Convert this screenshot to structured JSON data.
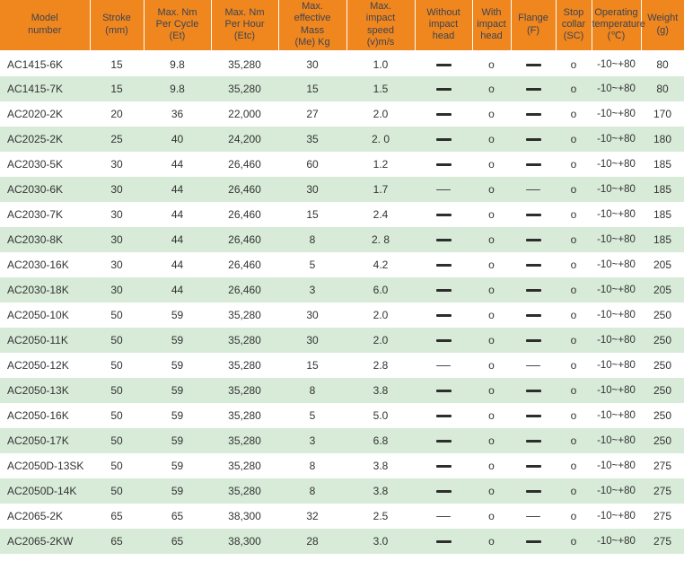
{
  "colors": {
    "header_bg": "#f0861e",
    "header_text": "#3c4454",
    "row_alt_bg": "#d7ebd8",
    "body_text": "#333333"
  },
  "table": {
    "columns": [
      {
        "key": "model",
        "label": "Model\nnumber"
      },
      {
        "key": "stroke",
        "label": "Stroke\n(mm)"
      },
      {
        "key": "per_cycle",
        "label": "Max. Nm\nPer Cycle\n(Et)"
      },
      {
        "key": "per_hour",
        "label": "Max. Nm\nPer Hour\n(Etc)"
      },
      {
        "key": "mass",
        "label": "Max.\neffective\nMass\n(Me) Kg"
      },
      {
        "key": "speed",
        "label": "Max.\nimpact\nspeed\n(v)m/s"
      },
      {
        "key": "without_head",
        "label": "Without\nimpact\nhead"
      },
      {
        "key": "with_head",
        "label": "With\nimpact\nhead"
      },
      {
        "key": "flange",
        "label": "Flange\n(F)"
      },
      {
        "key": "stop_collar",
        "label": "Stop\ncollar\n(SC)"
      },
      {
        "key": "temp",
        "label": "Operating\ntemperature\n(℃)"
      },
      {
        "key": "weight",
        "label": "Weight\n(g)"
      }
    ],
    "rows": [
      {
        "model": "AC1415-6K",
        "stroke": "15",
        "per_cycle": "9.8",
        "per_hour": "35,280",
        "mass": "30",
        "speed": "1.0",
        "without_head": "—",
        "with_head": "o",
        "flange": "—",
        "stop_collar": "o",
        "temp": "-10~+80",
        "weight": "80",
        "dash_style": "bold"
      },
      {
        "model": "AC1415-7K",
        "stroke": "15",
        "per_cycle": "9.8",
        "per_hour": "35,280",
        "mass": "15",
        "speed": "1.5",
        "without_head": "—",
        "with_head": "o",
        "flange": "—",
        "stop_collar": "o",
        "temp": "-10~+80",
        "weight": "80",
        "dash_style": "bold"
      },
      {
        "model": "AC2020-2K",
        "stroke": "20",
        "per_cycle": "36",
        "per_hour": "22,000",
        "mass": "27",
        "speed": "2.0",
        "without_head": "—",
        "with_head": "o",
        "flange": "—",
        "stop_collar": "o",
        "temp": "-10~+80",
        "weight": "170",
        "dash_style": "bold"
      },
      {
        "model": "AC2025-2K",
        "stroke": "25",
        "per_cycle": "40",
        "per_hour": "24,200",
        "mass": "35",
        "speed": "2. 0",
        "without_head": "—",
        "with_head": "o",
        "flange": "—",
        "stop_collar": "o",
        "temp": "-10~+80",
        "weight": "180",
        "dash_style": "bold"
      },
      {
        "model": "AC2030-5K",
        "stroke": "30",
        "per_cycle": "44",
        "per_hour": "26,460",
        "mass": "60",
        "speed": "1.2",
        "without_head": "—",
        "with_head": "o",
        "flange": "—",
        "stop_collar": "o",
        "temp": "-10~+80",
        "weight": "185",
        "dash_style": "bold"
      },
      {
        "model": "AC2030-6K",
        "stroke": "30",
        "per_cycle": "44",
        "per_hour": "26,460",
        "mass": "30",
        "speed": "1.7",
        "without_head": "–",
        "with_head": "o",
        "flange": "–",
        "stop_collar": "o",
        "temp": "-10~+80",
        "weight": "185",
        "dash_style": "light"
      },
      {
        "model": "AC2030-7K",
        "stroke": "30",
        "per_cycle": "44",
        "per_hour": "26,460",
        "mass": "15",
        "speed": "2.4",
        "without_head": "—",
        "with_head": "o",
        "flange": "—",
        "stop_collar": "o",
        "temp": "-10~+80",
        "weight": "185",
        "dash_style": "bold"
      },
      {
        "model": "AC2030-8K",
        "stroke": "30",
        "per_cycle": "44",
        "per_hour": "26,460",
        "mass": "8",
        "speed": "2. 8",
        "without_head": "—",
        "with_head": "o",
        "flange": "—",
        "stop_collar": "o",
        "temp": "-10~+80",
        "weight": "185",
        "dash_style": "bold"
      },
      {
        "model": "AC2030-16K",
        "stroke": "30",
        "per_cycle": "44",
        "per_hour": "26,460",
        "mass": "5",
        "speed": "4.2",
        "without_head": "—",
        "with_head": "o",
        "flange": "—",
        "stop_collar": "o",
        "temp": "-10~+80",
        "weight": "205",
        "dash_style": "bold"
      },
      {
        "model": "AC2030-18K",
        "stroke": "30",
        "per_cycle": "44",
        "per_hour": "26,460",
        "mass": "3",
        "speed": "6.0",
        "without_head": "—",
        "with_head": "o",
        "flange": "—",
        "stop_collar": "o",
        "temp": "-10~+80",
        "weight": "205",
        "dash_style": "bold"
      },
      {
        "model": "AC2050-10K",
        "stroke": "50",
        "per_cycle": "59",
        "per_hour": "35,280",
        "mass": "30",
        "speed": "2.0",
        "without_head": "—",
        "with_head": "o",
        "flange": "—",
        "stop_collar": "o",
        "temp": "-10~+80",
        "weight": "250",
        "dash_style": "bold"
      },
      {
        "model": "AC2050-11K",
        "stroke": "50",
        "per_cycle": "59",
        "per_hour": "35,280",
        "mass": "30",
        "speed": "2.0",
        "without_head": "—",
        "with_head": "o",
        "flange": "—",
        "stop_collar": "o",
        "temp": "-10~+80",
        "weight": "250",
        "dash_style": "bold"
      },
      {
        "model": "AC2050-12K",
        "stroke": "50",
        "per_cycle": "59",
        "per_hour": "35,280",
        "mass": "15",
        "speed": "2.8",
        "without_head": "–",
        "with_head": "o",
        "flange": "–",
        "stop_collar": "o",
        "temp": "-10~+80",
        "weight": "250",
        "dash_style": "light"
      },
      {
        "model": "AC2050-13K",
        "stroke": "50",
        "per_cycle": "59",
        "per_hour": "35,280",
        "mass": "8",
        "speed": "3.8",
        "without_head": "—",
        "with_head": "o",
        "flange": "—",
        "stop_collar": "o",
        "temp": "-10~+80",
        "weight": "250",
        "dash_style": "bold"
      },
      {
        "model": "AC2050-16K",
        "stroke": "50",
        "per_cycle": "59",
        "per_hour": "35,280",
        "mass": "5",
        "speed": "5.0",
        "without_head": "—",
        "with_head": "o",
        "flange": "—",
        "stop_collar": "o",
        "temp": "-10~+80",
        "weight": "250",
        "dash_style": "bold"
      },
      {
        "model": "AC2050-17K",
        "stroke": "50",
        "per_cycle": "59",
        "per_hour": "35,280",
        "mass": "3",
        "speed": "6.8",
        "without_head": "—",
        "with_head": "o",
        "flange": "—",
        "stop_collar": "o",
        "temp": "-10~+80",
        "weight": "250",
        "dash_style": "bold"
      },
      {
        "model": "AC2050D-13SK",
        "stroke": "50",
        "per_cycle": "59",
        "per_hour": "35,280",
        "mass": "8",
        "speed": "3.8",
        "without_head": "—",
        "with_head": "o",
        "flange": "—",
        "stop_collar": "o",
        "temp": "-10~+80",
        "weight": "275",
        "dash_style": "bold"
      },
      {
        "model": "AC2050D-14K",
        "stroke": "50",
        "per_cycle": "59",
        "per_hour": "35,280",
        "mass": "8",
        "speed": "3.8",
        "without_head": "—",
        "with_head": "o",
        "flange": "—",
        "stop_collar": "o",
        "temp": "-10~+80",
        "weight": "275",
        "dash_style": "bold"
      },
      {
        "model": "AC2065-2K",
        "stroke": "65",
        "per_cycle": "65",
        "per_hour": "38,300",
        "mass": "32",
        "speed": "2.5",
        "without_head": "–",
        "with_head": "o",
        "flange": "–",
        "stop_collar": "o",
        "temp": "-10~+80",
        "weight": "275",
        "dash_style": "light"
      },
      {
        "model": "AC2065-2KW",
        "stroke": "65",
        "per_cycle": "65",
        "per_hour": "38,300",
        "mass": "28",
        "speed": "3.0",
        "without_head": "—",
        "with_head": "o",
        "flange": "—",
        "stop_collar": "o",
        "temp": "-10~+80",
        "weight": "275",
        "dash_style": "bold"
      }
    ]
  }
}
